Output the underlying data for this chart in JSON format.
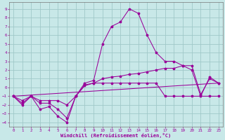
{
  "xlabel": "Windchill (Refroidissement éolien,°C)",
  "background_color": "#c8e8e8",
  "grid_color": "#a0c8c8",
  "line_color": "#990099",
  "xlim": [
    -0.5,
    23.5
  ],
  "ylim": [
    -4.5,
    9.8
  ],
  "xticks": [
    0,
    1,
    2,
    3,
    4,
    5,
    6,
    7,
    8,
    9,
    10,
    11,
    12,
    13,
    14,
    15,
    16,
    17,
    18,
    19,
    20,
    21,
    22,
    23
  ],
  "yticks": [
    -4,
    -3,
    -2,
    -1,
    0,
    1,
    2,
    3,
    4,
    5,
    6,
    7,
    8,
    9
  ],
  "series1_x": [
    0,
    1,
    2,
    3,
    4,
    5,
    6,
    7,
    8,
    9,
    10,
    11,
    12,
    13,
    14,
    15,
    16,
    17,
    18,
    19,
    20,
    21,
    22,
    23
  ],
  "series1_y": [
    -1,
    -2,
    -1,
    -2.5,
    -2.2,
    -3.3,
    -4,
    -1,
    0.5,
    0.8,
    5,
    7,
    7.5,
    9,
    8.5,
    6,
    4,
    3,
    3,
    2.5,
    2,
    -1,
    1.2,
    0.5
  ],
  "series2_x": [
    0,
    1,
    2,
    3,
    4,
    5,
    6,
    7,
    8,
    9,
    10,
    11,
    12,
    13,
    14,
    15,
    16,
    17,
    18,
    19,
    20,
    21,
    22,
    23
  ],
  "series2_y": [
    -1,
    -1.5,
    -1,
    -1.5,
    -1.5,
    -1.5,
    -2,
    -1,
    0.3,
    0.5,
    1,
    1.2,
    1.3,
    1.5,
    1.6,
    1.8,
    2,
    2.2,
    2.2,
    2.5,
    2.5,
    -0.8,
    1.0,
    0.5
  ],
  "series3_x": [
    0,
    1,
    2,
    3,
    4,
    5,
    6,
    7,
    8,
    9,
    10,
    11,
    12,
    13,
    14,
    15,
    16,
    17,
    18,
    19,
    20,
    21,
    22,
    23
  ],
  "series3_y": [
    -1,
    -1.8,
    -1,
    -1.8,
    -1.8,
    -2.5,
    -3.5,
    -1,
    0.2,
    0.5,
    0.5,
    0.5,
    0.5,
    0.5,
    0.5,
    0.5,
    0.5,
    -1,
    -1,
    -1,
    -1,
    -1,
    -1,
    -1
  ],
  "series4_x": [
    0,
    23
  ],
  "series4_y": [
    -1,
    0.5
  ]
}
